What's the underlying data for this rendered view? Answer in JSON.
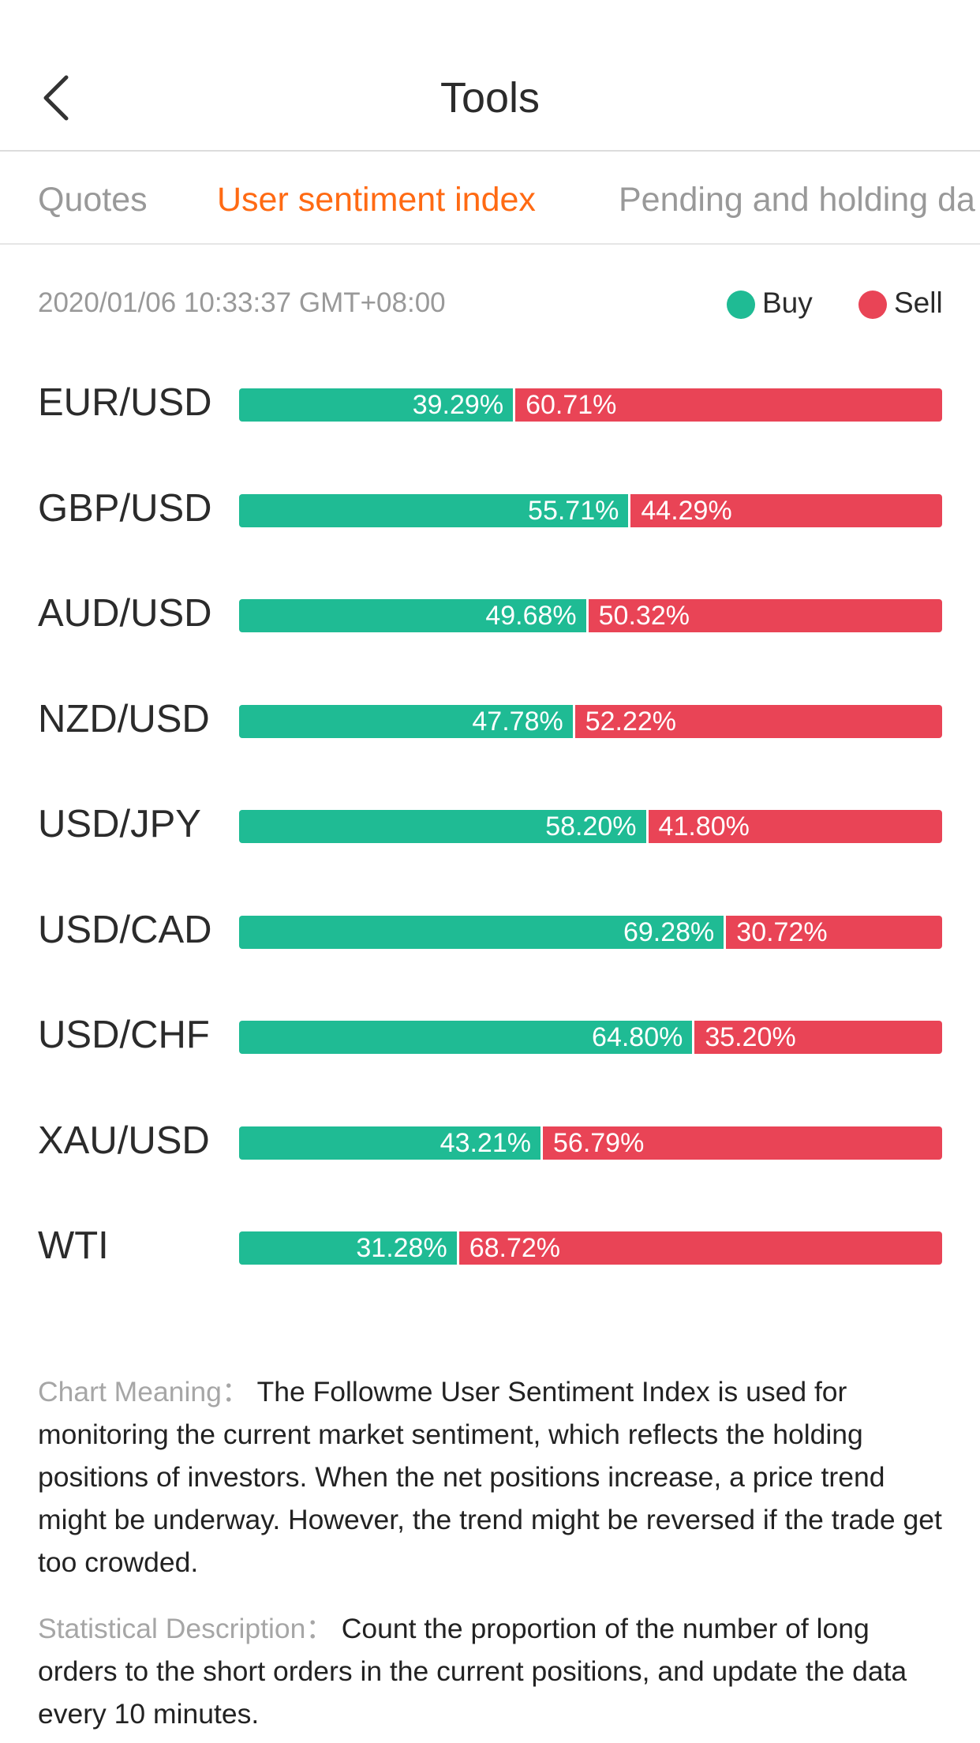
{
  "header": {
    "title": "Tools",
    "back_icon": "chevron-left-icon"
  },
  "tabs": [
    {
      "label": "Quotes",
      "active": false
    },
    {
      "label": "User sentiment index",
      "active": true
    },
    {
      "label": "Pending and holding da",
      "active": false
    }
  ],
  "timestamp": "2020/01/06 10:33:37 GMT+08:00",
  "legend": {
    "buy": {
      "label": "Buy",
      "color": "#1fbb94"
    },
    "sell": {
      "label": "Sell",
      "color": "#e94456"
    }
  },
  "sentiment": [
    {
      "pair": "EUR/USD",
      "buy": 39.29,
      "sell": 60.71,
      "buy_label": "39.29%",
      "sell_label": "60.71%"
    },
    {
      "pair": "GBP/USD",
      "buy": 55.71,
      "sell": 44.29,
      "buy_label": "55.71%",
      "sell_label": "44.29%"
    },
    {
      "pair": "AUD/USD",
      "buy": 49.68,
      "sell": 50.32,
      "buy_label": "49.68%",
      "sell_label": "50.32%"
    },
    {
      "pair": "NZD/USD",
      "buy": 47.78,
      "sell": 52.22,
      "buy_label": "47.78%",
      "sell_label": "52.22%"
    },
    {
      "pair": "USD/JPY",
      "buy": 58.2,
      "sell": 41.8,
      "buy_label": "58.20%",
      "sell_label": "41.80%"
    },
    {
      "pair": "USD/CAD",
      "buy": 69.28,
      "sell": 30.72,
      "buy_label": "69.28%",
      "sell_label": "30.72%"
    },
    {
      "pair": "USD/CHF",
      "buy": 64.8,
      "sell": 35.2,
      "buy_label": "64.80%",
      "sell_label": "35.20%"
    },
    {
      "pair": "XAU/USD",
      "buy": 43.21,
      "sell": 56.79,
      "buy_label": "43.21%",
      "sell_label": "56.79%"
    },
    {
      "pair": "WTI",
      "buy": 31.28,
      "sell": 68.72,
      "buy_label": "31.28%",
      "sell_label": "68.72%"
    }
  ],
  "descriptions": {
    "chart_meaning": {
      "label": "Chart Meaning： ",
      "text": "The Followme User Sentiment Index is used for monitoring the current market sentiment, which reflects the holding positions of investors. When the net positions increase, a price trend might be underway. However, the trend might be reversed if the trade get too crowded."
    },
    "statistical_description": {
      "label": "Statistical Description： ",
      "text": "Count the proportion of the number of long orders to the short orders in the current positions, and update the data every 10 minutes."
    }
  },
  "colors": {
    "accent": "#ff6a13",
    "buy": "#1fbb94",
    "sell": "#e94456"
  }
}
